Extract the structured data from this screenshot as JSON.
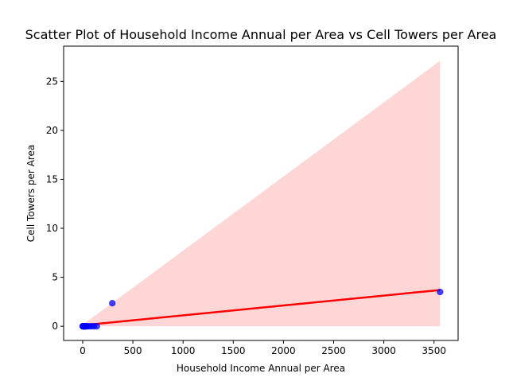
{
  "chart_data": {
    "type": "scatter",
    "title": "Scatter Plot of Household Income Annual per Area vs Cell Towers per Area",
    "xlabel": "Household Income Annual per Area",
    "ylabel": "Cell Towers per Area",
    "xlim": [
      -190,
      3740
    ],
    "ylim": [
      -1.45,
      28.6
    ],
    "xticks": [
      0,
      500,
      1000,
      1500,
      2000,
      2500,
      3000,
      3500
    ],
    "yticks": [
      0,
      5,
      10,
      15,
      20,
      25
    ],
    "grid": false,
    "legend": "none",
    "series": [
      {
        "kind": "scatter",
        "color": "#0000ff",
        "x": [
          0,
          2,
          5,
          8,
          10,
          15,
          20,
          25,
          30,
          40,
          60,
          85,
          110,
          140,
          295,
          3560
        ],
        "y": [
          0,
          0,
          0,
          0,
          0,
          0,
          0,
          0,
          0,
          0,
          0,
          0,
          0,
          0,
          2.35,
          3.5
        ]
      },
      {
        "kind": "regression-line",
        "color": "#ff0000",
        "x": [
          0,
          3560
        ],
        "y": [
          0.1,
          3.7
        ]
      },
      {
        "kind": "confidence-band",
        "color": "#ffcccc",
        "x": [
          0,
          3560
        ],
        "lower": [
          0,
          0
        ],
        "upper": [
          0.15,
          27.1
        ]
      }
    ]
  }
}
